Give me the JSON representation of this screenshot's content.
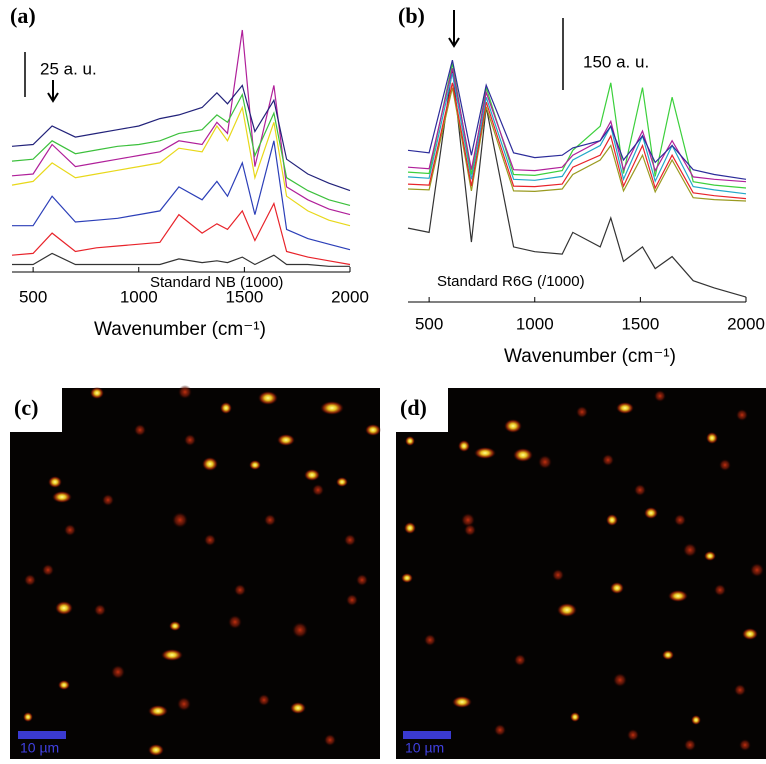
{
  "chart_data": [
    {
      "type": "line",
      "panel_label": "(a)",
      "scale_label": "25 a. u.",
      "annotation": "Standard NB (1000)",
      "x_label": "Wavenumber (cm⁻¹)",
      "x": [
        400,
        500,
        590,
        700,
        800,
        900,
        1000,
        1100,
        1190,
        1300,
        1370,
        1420,
        1490,
        1550,
        1640,
        1700,
        1800,
        1900,
        2000
      ],
      "xlim": [
        400,
        2000
      ],
      "ylim": [
        0,
        130
      ],
      "xticks": [
        500,
        1000,
        1500,
        2000
      ],
      "series": [
        {
          "color": "#333333",
          "values": [
            3,
            3,
            9,
            3,
            3,
            3,
            3,
            3,
            6,
            4,
            5,
            4,
            7,
            3,
            8,
            3,
            3,
            2,
            2
          ]
        },
        {
          "color": "#e8232a",
          "values": [
            8,
            9,
            20,
            10,
            12,
            13,
            14,
            15,
            30,
            20,
            25,
            22,
            32,
            16,
            36,
            10,
            7,
            5,
            3
          ]
        },
        {
          "color": "#2c3fb8",
          "values": [
            24,
            24,
            40,
            26,
            27,
            28,
            30,
            32,
            45,
            38,
            48,
            40,
            58,
            30,
            70,
            22,
            17,
            14,
            11
          ]
        },
        {
          "color": "#e8d81a",
          "values": [
            46,
            48,
            58,
            50,
            52,
            54,
            56,
            58,
            66,
            64,
            78,
            70,
            88,
            50,
            80,
            40,
            32,
            27,
            24
          ]
        },
        {
          "color": "#b0209a",
          "values": [
            51,
            52,
            68,
            56,
            58,
            60,
            62,
            64,
            70,
            68,
            80,
            74,
            130,
            56,
            100,
            45,
            38,
            33,
            30
          ]
        },
        {
          "color": "#3cc03c",
          "values": [
            59,
            60,
            70,
            63,
            65,
            67,
            68,
            70,
            74,
            76,
            84,
            80,
            95,
            62,
            85,
            50,
            43,
            38,
            35
          ]
        },
        {
          "color": "#22227a",
          "values": [
            67,
            68,
            78,
            72,
            74,
            76,
            78,
            82,
            84,
            88,
            96,
            90,
            100,
            75,
            92,
            60,
            52,
            47,
            43
          ]
        }
      ]
    },
    {
      "type": "line",
      "panel_label": "(b)",
      "scale_label": "150 a. u.",
      "annotation": "Standard R6G (/1000)",
      "x_label": "Wavenumber (cm⁻¹)",
      "x": [
        400,
        500,
        610,
        700,
        770,
        900,
        1000,
        1130,
        1180,
        1310,
        1360,
        1420,
        1510,
        1570,
        1650,
        1750,
        1850,
        2000
      ],
      "xlim": [
        400,
        2000
      ],
      "ylim": [
        0,
        580
      ],
      "xticks": [
        500,
        1000,
        1500,
        2000
      ],
      "series": [
        {
          "color": "#333333",
          "values": [
            149,
            140,
            480,
            120,
            400,
            110,
            100,
            95,
            140,
            110,
            170,
            80,
            110,
            65,
            90,
            40,
            25,
            6
          ]
        },
        {
          "color": "#9a9a20",
          "values": [
            230,
            228,
            440,
            226,
            400,
            226,
            225,
            230,
            260,
            290,
            320,
            226,
            300,
            224,
            290,
            212,
            208,
            205
          ]
        },
        {
          "color": "#e8232a",
          "values": [
            240,
            238,
            450,
            236,
            410,
            236,
            235,
            240,
            275,
            300,
            340,
            236,
            320,
            232,
            300,
            222,
            216,
            210
          ]
        },
        {
          "color": "#22a8c8",
          "values": [
            255,
            252,
            470,
            250,
            420,
            250,
            248,
            256,
            290,
            320,
            360,
            250,
            340,
            246,
            320,
            235,
            228,
            220
          ]
        },
        {
          "color": "#3cd03c",
          "values": [
            265,
            262,
            490,
            260,
            440,
            260,
            258,
            268,
            310,
            360,
            450,
            262,
            440,
            256,
            420,
            245,
            238,
            232
          ]
        },
        {
          "color": "#b0209a",
          "values": [
            275,
            272,
            480,
            270,
            430,
            270,
            268,
            275,
            300,
            330,
            370,
            270,
            350,
            268,
            330,
            255,
            250,
            245
          ]
        },
        {
          "color": "#2c2c9a",
          "values": [
            310,
            305,
            497,
            300,
            445,
            305,
            295,
            300,
            315,
            330,
            360,
            290,
            340,
            285,
            320,
            270,
            260,
            250
          ]
        }
      ]
    }
  ],
  "panels": [
    {
      "label": "(c)",
      "scale_label": "10 µm"
    },
    {
      "label": "(d)",
      "scale_label": "10 µm"
    }
  ]
}
